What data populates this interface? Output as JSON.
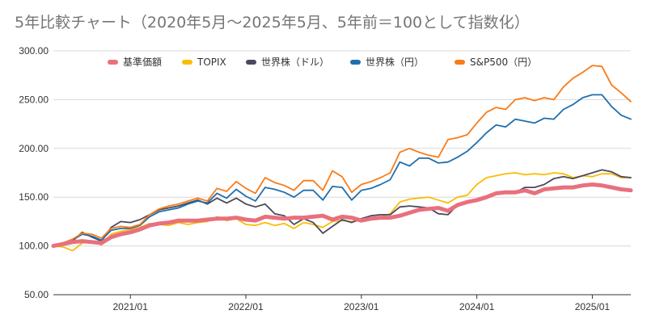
{
  "chart_data": {
    "type": "line",
    "title": "5年比較チャート（2020年5月〜2025年5月、5年前＝100として指数化）",
    "xlabel": "",
    "ylabel": "",
    "ylim": [
      50,
      300
    ],
    "y_ticks": [
      "50.00",
      "100.00",
      "150.00",
      "200.00",
      "250.00",
      "300.00"
    ],
    "x_ticks": [
      "2021/01",
      "2022/01",
      "2023/01",
      "2024/01",
      "2025/01"
    ],
    "grid": "horizontal",
    "legend_position": "top",
    "x": [
      "2020/05",
      "2020/06",
      "2020/07",
      "2020/08",
      "2020/09",
      "2020/10",
      "2020/11",
      "2020/12",
      "2021/01",
      "2021/02",
      "2021/03",
      "2021/04",
      "2021/05",
      "2021/06",
      "2021/07",
      "2021/08",
      "2021/09",
      "2021/10",
      "2021/11",
      "2021/12",
      "2022/01",
      "2022/02",
      "2022/03",
      "2022/04",
      "2022/05",
      "2022/06",
      "2022/07",
      "2022/08",
      "2022/09",
      "2022/10",
      "2022/11",
      "2022/12",
      "2023/01",
      "2023/02",
      "2023/03",
      "2023/04",
      "2023/05",
      "2023/06",
      "2023/07",
      "2023/08",
      "2023/09",
      "2023/10",
      "2023/11",
      "2023/12",
      "2024/01",
      "2024/02",
      "2024/03",
      "2024/04",
      "2024/05",
      "2024/06",
      "2024/07",
      "2024/08",
      "2024/09",
      "2024/10",
      "2024/11",
      "2024/12",
      "2025/01",
      "2025/02",
      "2025/03",
      "2025/04",
      "2025/05"
    ],
    "series": [
      {
        "name": "基準価額",
        "color": "#e8707c",
        "width": 5,
        "values": [
          100,
          102,
          104,
          105,
          104,
          103,
          109,
          112,
          114,
          117,
          121,
          123,
          124,
          126,
          126,
          126,
          127,
          128,
          128,
          129,
          127,
          126,
          130,
          129,
          128,
          129,
          129,
          130,
          131,
          127,
          130,
          129,
          126,
          128,
          129,
          129,
          131,
          134,
          137,
          138,
          139,
          136,
          142,
          145,
          147,
          150,
          154,
          155,
          155,
          157,
          154,
          158,
          159,
          160,
          160,
          162,
          163,
          162,
          160,
          158,
          157
        ]
      },
      {
        "name": "TOPIX",
        "color": "#fbbc04",
        "width": 1.8,
        "values": [
          100,
          99,
          95,
          103,
          104,
          101,
          112,
          115,
          117,
          119,
          123,
          122,
          121,
          124,
          122,
          124,
          125,
          130,
          126,
          128,
          122,
          121,
          124,
          121,
          123,
          118,
          124,
          122,
          119,
          125,
          126,
          125,
          126,
          128,
          130,
          133,
          145,
          148,
          149,
          150,
          147,
          144,
          150,
          152,
          163,
          170,
          172,
          174,
          175,
          173,
          174,
          173,
          175,
          174,
          170,
          172,
          171,
          174,
          174,
          170,
          170
        ]
      },
      {
        "name": "世界株（ドル）",
        "color": "#4a4a5e",
        "width": 1.8,
        "values": [
          101,
          102,
          105,
          114,
          109,
          105,
          119,
          125,
          124,
          127,
          132,
          137,
          139,
          141,
          144,
          147,
          143,
          149,
          144,
          149,
          143,
          140,
          143,
          133,
          131,
          122,
          128,
          124,
          113,
          120,
          127,
          124,
          128,
          131,
          132,
          132,
          140,
          141,
          140,
          139,
          133,
          132,
          142,
          146,
          148,
          150,
          155,
          155,
          155,
          160,
          160,
          163,
          169,
          171,
          169,
          172,
          175,
          178,
          176,
          171,
          170
        ]
      },
      {
        "name": "世界株（円）",
        "color": "#1f6fad",
        "width": 1.8,
        "values": [
          101,
          103,
          106,
          112,
          110,
          106,
          116,
          118,
          118,
          121,
          130,
          135,
          137,
          139,
          143,
          146,
          144,
          154,
          149,
          158,
          151,
          146,
          160,
          158,
          155,
          150,
          157,
          157,
          147,
          161,
          160,
          147,
          157,
          159,
          163,
          168,
          186,
          182,
          190,
          190,
          185,
          186,
          191,
          197,
          206,
          216,
          224,
          222,
          230,
          228,
          226,
          231,
          230,
          240,
          245,
          252,
          255,
          255,
          243,
          234,
          230
        ]
      },
      {
        "name": "S&P500（円）",
        "color": "#fa7b17",
        "width": 1.8,
        "values": [
          101,
          103,
          107,
          113,
          112,
          108,
          118,
          120,
          119,
          122,
          132,
          138,
          141,
          143,
          146,
          149,
          146,
          159,
          156,
          166,
          159,
          154,
          170,
          165,
          162,
          157,
          167,
          167,
          157,
          177,
          171,
          155,
          163,
          166,
          170,
          175,
          196,
          200,
          196,
          193,
          191,
          209,
          211,
          214,
          226,
          237,
          242,
          240,
          250,
          252,
          249,
          252,
          250,
          263,
          272,
          278,
          285,
          284,
          265,
          257,
          248
        ]
      }
    ]
  }
}
